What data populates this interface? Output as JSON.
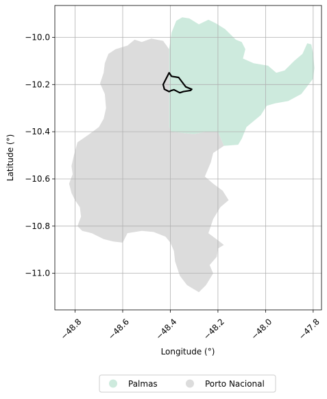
{
  "chart_data": {
    "type": "map",
    "xlabel": "Longitude (°)",
    "ylabel": "Latitude (°)",
    "xlim": [
      -48.885,
      -47.765
    ],
    "ylim": [
      -11.155,
      -9.865
    ],
    "xticks": [
      -48.8,
      -48.6,
      -48.4,
      -48.2,
      -48.0,
      -47.8
    ],
    "xtick_labels": [
      "−48.8",
      "−48.6",
      "−48.4",
      "−48.2",
      "−48.0",
      "−47.8"
    ],
    "yticks": [
      -10.0,
      -10.2,
      -10.4,
      -10.6,
      -10.8,
      -11.0
    ],
    "ytick_labels": [
      "−10.0",
      "−10.2",
      "−10.4",
      "−10.6",
      "−10.8",
      "−11.0"
    ],
    "grid": true,
    "legend_position": "bottom-center",
    "series": [
      {
        "name": "Palmas",
        "color": "#cdeadd",
        "polygon": [
          [
            -48.405,
            -10.05
          ],
          [
            -48.395,
            -9.98
          ],
          [
            -48.375,
            -9.93
          ],
          [
            -48.35,
            -9.915
          ],
          [
            -48.32,
            -9.92
          ],
          [
            -48.28,
            -9.945
          ],
          [
            -48.24,
            -9.925
          ],
          [
            -48.21,
            -9.94
          ],
          [
            -48.17,
            -9.965
          ],
          [
            -48.125,
            -10.01
          ],
          [
            -48.1,
            -10.02
          ],
          [
            -48.085,
            -10.05
          ],
          [
            -48.095,
            -10.09
          ],
          [
            -48.05,
            -10.11
          ],
          [
            -47.99,
            -10.12
          ],
          [
            -47.955,
            -10.15
          ],
          [
            -47.92,
            -10.14
          ],
          [
            -47.88,
            -10.1
          ],
          [
            -47.845,
            -10.07
          ],
          [
            -47.825,
            -10.025
          ],
          [
            -47.808,
            -10.03
          ],
          [
            -47.8,
            -10.07
          ],
          [
            -47.795,
            -10.13
          ],
          [
            -47.8,
            -10.175
          ],
          [
            -47.85,
            -10.24
          ],
          [
            -47.905,
            -10.27
          ],
          [
            -47.96,
            -10.28
          ],
          [
            -47.995,
            -10.29
          ],
          [
            -48.02,
            -10.33
          ],
          [
            -48.08,
            -10.38
          ],
          [
            -48.1,
            -10.43
          ],
          [
            -48.115,
            -10.455
          ],
          [
            -48.175,
            -10.46
          ],
          [
            -48.2,
            -10.4
          ],
          [
            -48.25,
            -10.4
          ],
          [
            -48.3,
            -10.41
          ],
          [
            -48.35,
            -10.405
          ],
          [
            -48.395,
            -10.4
          ],
          [
            -48.405,
            -10.38
          ],
          [
            -48.405,
            -10.25
          ],
          [
            -48.405,
            -10.15
          ]
        ]
      },
      {
        "name": "Porto Nacional",
        "color": "#dcdcdc",
        "polygon": [
          [
            -48.405,
            -10.05
          ],
          [
            -48.43,
            -10.015
          ],
          [
            -48.48,
            -10.005
          ],
          [
            -48.52,
            -10.02
          ],
          [
            -48.55,
            -10.01
          ],
          [
            -48.58,
            -10.035
          ],
          [
            -48.63,
            -10.05
          ],
          [
            -48.66,
            -10.07
          ],
          [
            -48.675,
            -10.11
          ],
          [
            -48.68,
            -10.15
          ],
          [
            -48.695,
            -10.195
          ],
          [
            -48.675,
            -10.24
          ],
          [
            -48.67,
            -10.3
          ],
          [
            -48.68,
            -10.345
          ],
          [
            -48.7,
            -10.38
          ],
          [
            -48.74,
            -10.41
          ],
          [
            -48.79,
            -10.445
          ],
          [
            -48.805,
            -10.5
          ],
          [
            -48.815,
            -10.545
          ],
          [
            -48.81,
            -10.58
          ],
          [
            -48.825,
            -10.62
          ],
          [
            -48.815,
            -10.66
          ],
          [
            -48.8,
            -10.69
          ],
          [
            -48.78,
            -10.72
          ],
          [
            -48.775,
            -10.76
          ],
          [
            -48.79,
            -10.8
          ],
          [
            -48.77,
            -10.82
          ],
          [
            -48.73,
            -10.83
          ],
          [
            -48.68,
            -10.855
          ],
          [
            -48.64,
            -10.865
          ],
          [
            -48.6,
            -10.87
          ],
          [
            -48.58,
            -10.83
          ],
          [
            -48.52,
            -10.82
          ],
          [
            -48.47,
            -10.825
          ],
          [
            -48.42,
            -10.845
          ],
          [
            -48.4,
            -10.87
          ],
          [
            -48.385,
            -10.905
          ],
          [
            -48.38,
            -10.95
          ],
          [
            -48.36,
            -11.01
          ],
          [
            -48.33,
            -11.05
          ],
          [
            -48.28,
            -11.08
          ],
          [
            -48.25,
            -11.05
          ],
          [
            -48.22,
            -11.0
          ],
          [
            -48.235,
            -10.965
          ],
          [
            -48.205,
            -10.93
          ],
          [
            -48.2,
            -10.895
          ],
          [
            -48.175,
            -10.88
          ],
          [
            -48.2,
            -10.86
          ],
          [
            -48.24,
            -10.83
          ],
          [
            -48.22,
            -10.77
          ],
          [
            -48.19,
            -10.72
          ],
          [
            -48.155,
            -10.69
          ],
          [
            -48.18,
            -10.65
          ],
          [
            -48.22,
            -10.62
          ],
          [
            -48.255,
            -10.59
          ],
          [
            -48.23,
            -10.53
          ],
          [
            -48.22,
            -10.49
          ],
          [
            -48.175,
            -10.46
          ],
          [
            -48.2,
            -10.4
          ],
          [
            -48.25,
            -10.4
          ],
          [
            -48.3,
            -10.41
          ],
          [
            -48.35,
            -10.405
          ],
          [
            -48.395,
            -10.4
          ],
          [
            -48.405,
            -10.38
          ],
          [
            -48.405,
            -10.25
          ],
          [
            -48.405,
            -10.15
          ]
        ]
      },
      {
        "name": "",
        "color": "#000000",
        "outline": true,
        "polygon": [
          [
            -48.405,
            -10.15
          ],
          [
            -48.395,
            -10.165
          ],
          [
            -48.365,
            -10.17
          ],
          [
            -48.35,
            -10.19
          ],
          [
            -48.335,
            -10.21
          ],
          [
            -48.31,
            -10.22
          ],
          [
            -48.315,
            -10.225
          ],
          [
            -48.345,
            -10.23
          ],
          [
            -48.36,
            -10.235
          ],
          [
            -48.385,
            -10.222
          ],
          [
            -48.395,
            -10.225
          ],
          [
            -48.405,
            -10.23
          ],
          [
            -48.425,
            -10.22
          ],
          [
            -48.43,
            -10.2
          ],
          [
            -48.42,
            -10.18
          ]
        ]
      }
    ]
  },
  "legend": {
    "items": [
      {
        "label": "Palmas",
        "color": "#cdeadd"
      },
      {
        "label": "Porto Nacional",
        "color": "#dcdcdc"
      }
    ]
  }
}
